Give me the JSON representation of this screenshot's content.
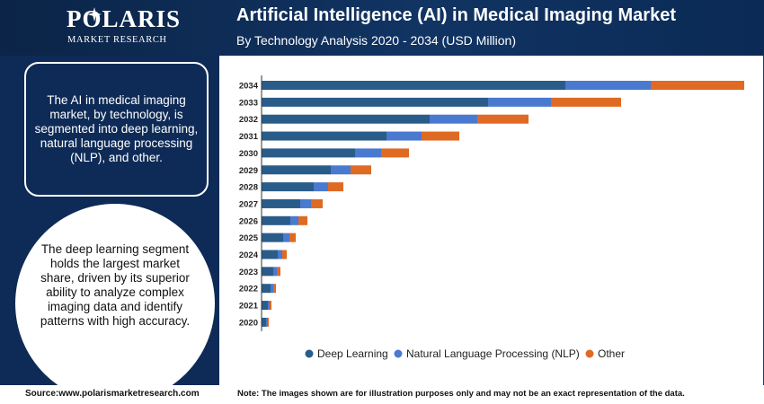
{
  "header": {
    "logo_name": "POLARIS",
    "logo_tagline": "MARKET RESEARCH",
    "title": "Artificial Intelligence (AI) in Medical Imaging Market",
    "subtitle": "By Technology Analysis 2020 - 2034 (USD Million)"
  },
  "left_panel": {
    "info_text": "The AI in medical imaging market, by technology, is segmented into deep learning, natural language processing (NLP), and other.",
    "highlight_text": "The deep learning segment holds the largest market share, driven by its superior ability to analyze complex imaging data and identify patterns with high accuracy."
  },
  "footer": {
    "source": "Source:www.polarismarketresearch.com",
    "note": "Note: The images shown are for illustration purposes only and may not be an exact representation of the data."
  },
  "colors": {
    "header_bg": "#0b2447",
    "panel_bg": "#0e2b57",
    "deep_learning": "#2a5c8a",
    "nlp": "#4a79d0",
    "other": "#df6a23"
  },
  "chart_data": {
    "type": "bar",
    "orientation": "horizontal",
    "stacked": true,
    "title": "Artificial Intelligence (AI) in Medical Imaging Market",
    "subtitle": "By Technology Analysis 2020 - 2034 (USD Million)",
    "categories": [
      "2034",
      "2033",
      "2032",
      "2031",
      "2030",
      "2029",
      "2028",
      "2027",
      "2026",
      "2025",
      "2024",
      "2023",
      "2022",
      "2021",
      "2020"
    ],
    "series": [
      {
        "name": "Deep Learning",
        "color": "#2a5c8a",
        "values": [
          338,
          252,
          187,
          139,
          104,
          77,
          58,
          43,
          32,
          24,
          18,
          13,
          10,
          7,
          5
        ]
      },
      {
        "name": "Natural Language Processing (NLP)",
        "color": "#4a79d0",
        "values": [
          95,
          70,
          53,
          39,
          29,
          22,
          16,
          12,
          9,
          7,
          5,
          4,
          3,
          2,
          2
        ]
      },
      {
        "name": "Other",
        "color": "#df6a23",
        "values": [
          104,
          78,
          57,
          42,
          31,
          23,
          17,
          13,
          10,
          7,
          5,
          4,
          3,
          2,
          1
        ]
      }
    ],
    "xlim": [
      0,
      540
    ],
    "axis_labels_shown": false,
    "grid": false,
    "legend": "bottom"
  }
}
